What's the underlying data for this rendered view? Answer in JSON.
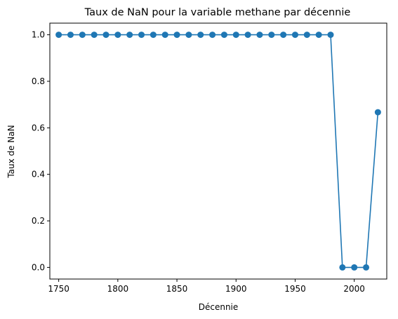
{
  "chart_data": {
    "type": "line",
    "title": "Taux de NaN pour la variable methane par décennie",
    "xlabel": "Décennie",
    "ylabel": "Taux de NaN",
    "xlim": [
      1742.5,
      2027.5
    ],
    "ylim": [
      -0.05,
      1.05
    ],
    "xticks": [
      1750,
      1800,
      1850,
      1900,
      1950,
      2000
    ],
    "xtick_labels": [
      "1750",
      "1800",
      "1850",
      "1900",
      "1950",
      "2000"
    ],
    "yticks": [
      0.0,
      0.2,
      0.4,
      0.6,
      0.8,
      1.0
    ],
    "ytick_labels": [
      "0.0",
      "0.2",
      "0.4",
      "0.6",
      "0.8",
      "1.0"
    ],
    "grid": false,
    "color": "#1f77b4",
    "marker": "circle",
    "series": [
      {
        "x": [
          1750,
          1760,
          1770,
          1780,
          1790,
          1800,
          1810,
          1820,
          1830,
          1840,
          1850,
          1860,
          1870,
          1880,
          1890,
          1900,
          1910,
          1920,
          1930,
          1940,
          1950,
          1960,
          1970,
          1980,
          1990,
          2000,
          2010,
          2020
        ],
        "values": [
          1.0,
          1.0,
          1.0,
          1.0,
          1.0,
          1.0,
          1.0,
          1.0,
          1.0,
          1.0,
          1.0,
          1.0,
          1.0,
          1.0,
          1.0,
          1.0,
          1.0,
          1.0,
          1.0,
          1.0,
          1.0,
          1.0,
          1.0,
          1.0,
          0.0,
          0.0,
          0.0,
          0.667
        ]
      }
    ]
  }
}
